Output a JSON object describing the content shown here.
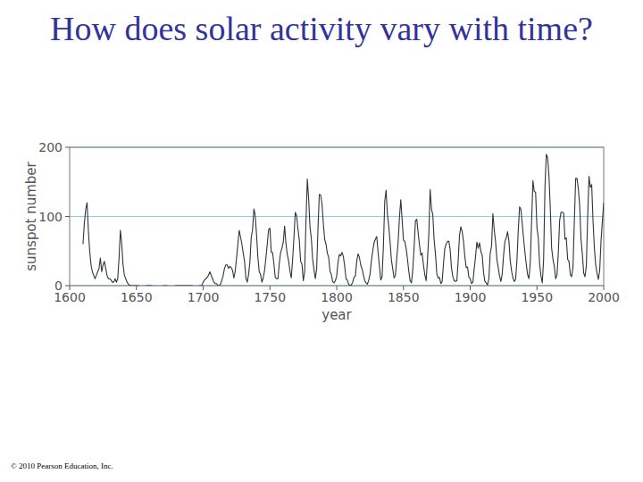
{
  "chart_data": {
    "type": "line",
    "title": "How does solar activity vary with time?",
    "x_label": "year",
    "y_label": "sunspot number",
    "footnote": "© 2010 Pearson Education, Inc.",
    "color": "#333333",
    "grid": true,
    "xlim": [
      1600,
      2000
    ],
    "xticks": [
      1600,
      1650,
      1700,
      1750,
      1800,
      1850,
      1900,
      1950,
      2000
    ],
    "ylim": [
      0,
      200
    ],
    "yticks": [
      0,
      100,
      200
    ],
    "x": [
      1610,
      1611,
      1612,
      1613,
      1614,
      1615,
      1616,
      1617,
      1618,
      1619,
      1620,
      1621,
      1622,
      1623,
      1624,
      1625,
      1626,
      1627,
      1628,
      1629,
      1630,
      1631,
      1632,
      1633,
      1634,
      1635,
      1636,
      1637,
      1638,
      1639,
      1640,
      1641,
      1642,
      1643,
      1644,
      1645,
      1646,
      1647,
      1648,
      1649,
      1650,
      1651,
      1652,
      1653,
      1654,
      1655,
      1656,
      1657,
      1658,
      1659,
      1660,
      1661,
      1662,
      1663,
      1664,
      1665,
      1666,
      1667,
      1668,
      1669,
      1670,
      1671,
      1672,
      1673,
      1674,
      1675,
      1676,
      1677,
      1678,
      1679,
      1680,
      1681,
      1682,
      1683,
      1684,
      1685,
      1686,
      1687,
      1688,
      1689,
      1690,
      1691,
      1692,
      1693,
      1694,
      1695,
      1696,
      1697,
      1698,
      1699,
      1700,
      1701,
      1702,
      1703,
      1704,
      1705,
      1706,
      1707,
      1708,
      1709,
      1710,
      1711,
      1712,
      1713,
      1714,
      1715,
      1716,
      1717,
      1718,
      1719,
      1720,
      1721,
      1722,
      1723,
      1724,
      1725,
      1726,
      1727,
      1728,
      1729,
      1730,
      1731,
      1732,
      1733,
      1734,
      1735,
      1736,
      1737,
      1738,
      1739,
      1740,
      1741,
      1742,
      1743,
      1744,
      1745,
      1746,
      1747,
      1748,
      1749,
      1750,
      1751,
      1752,
      1753,
      1754,
      1755,
      1756,
      1757,
      1758,
      1759,
      1760,
      1761,
      1762,
      1763,
      1764,
      1765,
      1766,
      1767,
      1768,
      1769,
      1770,
      1771,
      1772,
      1773,
      1774,
      1775,
      1776,
      1777,
      1778,
      1779,
      1780,
      1781,
      1782,
      1783,
      1784,
      1785,
      1786,
      1787,
      1788,
      1789,
      1790,
      1791,
      1792,
      1793,
      1794,
      1795,
      1796,
      1797,
      1798,
      1799,
      1800,
      1801,
      1802,
      1803,
      1804,
      1805,
      1806,
      1807,
      1808,
      1809,
      1810,
      1811,
      1812,
      1813,
      1814,
      1815,
      1816,
      1817,
      1818,
      1819,
      1820,
      1821,
      1822,
      1823,
      1824,
      1825,
      1826,
      1827,
      1828,
      1829,
      1830,
      1831,
      1832,
      1833,
      1834,
      1835,
      1836,
      1837,
      1838,
      1839,
      1840,
      1841,
      1842,
      1843,
      1844,
      1845,
      1846,
      1847,
      1848,
      1849,
      1850,
      1851,
      1852,
      1853,
      1854,
      1855,
      1856,
      1857,
      1858,
      1859,
      1860,
      1861,
      1862,
      1863,
      1864,
      1865,
      1866,
      1867,
      1868,
      1869,
      1870,
      1871,
      1872,
      1873,
      1874,
      1875,
      1876,
      1877,
      1878,
      1879,
      1880,
      1881,
      1882,
      1883,
      1884,
      1885,
      1886,
      1887,
      1888,
      1889,
      1890,
      1891,
      1892,
      1893,
      1894,
      1895,
      1896,
      1897,
      1898,
      1899,
      1900,
      1901,
      1902,
      1903,
      1904,
      1905,
      1906,
      1907,
      1908,
      1909,
      1910,
      1911,
      1912,
      1913,
      1914,
      1915,
      1916,
      1917,
      1918,
      1919,
      1920,
      1921,
      1922,
      1923,
      1924,
      1925,
      1926,
      1927,
      1928,
      1929,
      1930,
      1931,
      1932,
      1933,
      1934,
      1935,
      1936,
      1937,
      1938,
      1939,
      1940,
      1941,
      1942,
      1943,
      1944,
      1945,
      1946,
      1947,
      1948,
      1949,
      1950,
      1951,
      1952,
      1953,
      1954,
      1955,
      1956,
      1957,
      1958,
      1959,
      1960,
      1961,
      1962,
      1963,
      1964,
      1965,
      1966,
      1967,
      1968,
      1969,
      1970,
      1971,
      1972,
      1973,
      1974,
      1975,
      1976,
      1977,
      1978,
      1979,
      1980,
      1981,
      1982,
      1983,
      1984,
      1985,
      1986,
      1987,
      1988,
      1989,
      1990,
      1991,
      1992,
      1993,
      1994,
      1995,
      1996,
      1997,
      1998,
      1999,
      2000
    ],
    "values": [
      60,
      90,
      110,
      120,
      80,
      50,
      30,
      20,
      15,
      10,
      15,
      20,
      25,
      40,
      20,
      30,
      35,
      25,
      15,
      10,
      10,
      8,
      5,
      5,
      10,
      5,
      10,
      40,
      80,
      60,
      30,
      15,
      10,
      5,
      2,
      0,
      0,
      0,
      0,
      0,
      0,
      0,
      0,
      null,
      null,
      null,
      null,
      0,
      0,
      0,
      0,
      0,
      0,
      null,
      null,
      null,
      null,
      null,
      null,
      null,
      0,
      0,
      0,
      0,
      null,
      null,
      null,
      null,
      null,
      0,
      0,
      0,
      0,
      0,
      0,
      0,
      0,
      0,
      0,
      0,
      0,
      0,
      0,
      null,
      null,
      null,
      null,
      0,
      0,
      0,
      5,
      8,
      10,
      12,
      15,
      20,
      15,
      10,
      5,
      3,
      3,
      0,
      0,
      2,
      8,
      15,
      25,
      30,
      30,
      25,
      28,
      26,
      22,
      11,
      21,
      40,
      60,
      80,
      70,
      60,
      47,
      35,
      11,
      5,
      16,
      34,
      70,
      81,
      111,
      101,
      73,
      40,
      20,
      16,
      5,
      11,
      22,
      40,
      60,
      81,
      83,
      48,
      48,
      31,
      12,
      10,
      10,
      32,
      48,
      54,
      63,
      86,
      61,
      45,
      36,
      21,
      11,
      38,
      70,
      106,
      101,
      82,
      66,
      35,
      31,
      7,
      20,
      93,
      154,
      126,
      85,
      68,
      38,
      23,
      10,
      24,
      83,
      132,
      131,
      118,
      90,
      67,
      60,
      47,
      41,
      21,
      16,
      6,
      4,
      7,
      14,
      34,
      45,
      43,
      48,
      42,
      28,
      10,
      8,
      2,
      0,
      1,
      5,
      12,
      14,
      35,
      46,
      41,
      30,
      24,
      16,
      7,
      4,
      2,
      8,
      17,
      36,
      50,
      62,
      67,
      71,
      48,
      28,
      8,
      13,
      57,
      122,
      138,
      103,
      86,
      63,
      37,
      24,
      11,
      15,
      40,
      62,
      98,
      124,
      96,
      66,
      64,
      54,
      39,
      21,
      7,
      4,
      23,
      55,
      94,
      96,
      77,
      59,
      44,
      47,
      30,
      16,
      7,
      37,
      74,
      139,
      111,
      102,
      66,
      45,
      17,
      11,
      12,
      3,
      6,
      32,
      54,
      60,
      64,
      64,
      52,
      25,
      13,
      7,
      6,
      7,
      36,
      73,
      85,
      78,
      64,
      42,
      26,
      27,
      12,
      10,
      3,
      5,
      24,
      42,
      63,
      54,
      62,
      49,
      44,
      19,
      6,
      4,
      1,
      10,
      47,
      57,
      104,
      81,
      64,
      38,
      26,
      14,
      6,
      17,
      44,
      64,
      69,
      78,
      65,
      36,
      21,
      11,
      6,
      9,
      36,
      80,
      114,
      110,
      89,
      68,
      48,
      31,
      16,
      10,
      33,
      93,
      152,
      136,
      135,
      84,
      69,
      31,
      14,
      4,
      38,
      142,
      190,
      185,
      159,
      112,
      54,
      38,
      28,
      10,
      15,
      47,
      94,
      106,
      106,
      105,
      67,
      69,
      38,
      35,
      16,
      13,
      27,
      93,
      155,
      155,
      140,
      116,
      67,
      46,
      18,
      13,
      29,
      100,
      158,
      142,
      146,
      94,
      55,
      30,
      18,
      9,
      22,
      64,
      93,
      120
    ]
  }
}
